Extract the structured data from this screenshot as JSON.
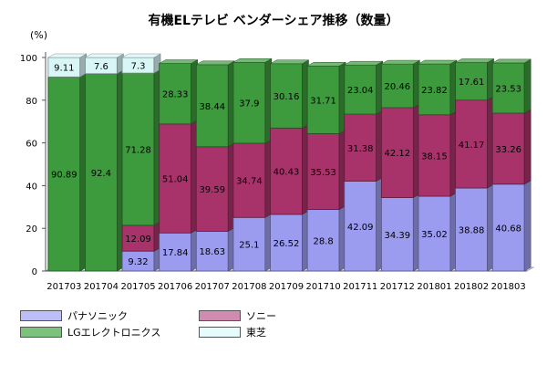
{
  "chart_data": {
    "type": "bar",
    "stacked": true,
    "title": "有機ELテレビ ベンダーシェア推移（数量）",
    "ylabel": "(%)",
    "xlabel": "",
    "ylim": [
      0,
      100
    ],
    "yticks": [
      0,
      20,
      40,
      60,
      80,
      100
    ],
    "grid": false,
    "legend_position": "bottom",
    "categories": [
      "201703",
      "201704",
      "201705",
      "201706",
      "201707",
      "201708",
      "201709",
      "201710",
      "201711",
      "201712",
      "201801",
      "201802",
      "201803"
    ],
    "series": [
      {
        "name": "パナソニック",
        "color": "#9b9bf0",
        "values": [
          0,
          0,
          9.32,
          17.84,
          18.63,
          25.1,
          26.52,
          28.8,
          42.09,
          34.39,
          35.02,
          38.88,
          40.68
        ]
      },
      {
        "name": "ソニー",
        "color": "#a8336a",
        "values": [
          0,
          0,
          12.09,
          51.04,
          39.59,
          34.74,
          40.43,
          35.53,
          31.38,
          42.12,
          38.15,
          41.17,
          33.26
        ]
      },
      {
        "name": "LGエレクトロニクス",
        "color": "#3d9a3d",
        "values": [
          90.89,
          92.4,
          71.28,
          28.33,
          38.44,
          37.9,
          30.16,
          31.71,
          23.04,
          20.46,
          23.82,
          17.61,
          23.53
        ]
      },
      {
        "name": "東芝",
        "color": "#d8f6f6",
        "values": [
          9.11,
          7.6,
          7.3,
          0,
          0,
          0,
          0,
          0,
          0,
          0,
          0,
          0,
          0
        ]
      }
    ]
  }
}
